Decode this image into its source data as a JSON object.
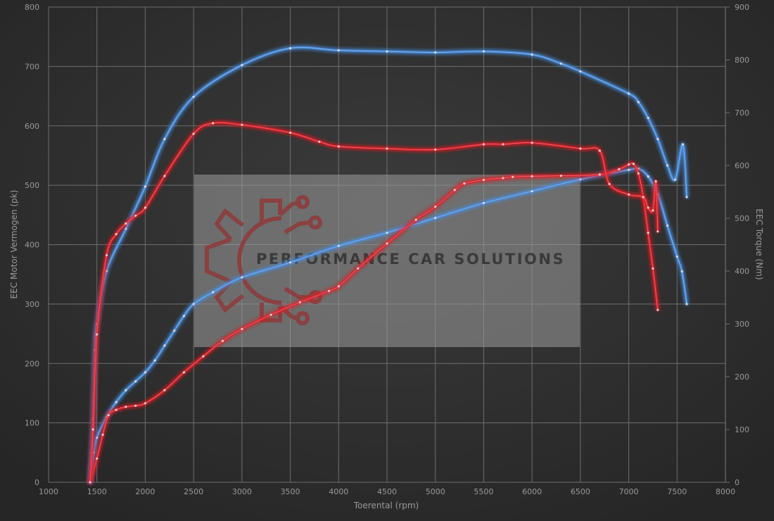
{
  "chart_data": {
    "type": "line",
    "xlabel": "Toerental (rpm)",
    "ylabel_left": "EEC Motor Vermogen (pk)",
    "ylabel_right": "EEC Torque (Nm)",
    "xlim": [
      1000,
      8000
    ],
    "ylim_left": [
      0,
      800
    ],
    "ylim_right": [
      0,
      900
    ],
    "x_ticks": [
      1000,
      1500,
      2000,
      2500,
      3000,
      3500,
      4000,
      4500,
      5000,
      5500,
      6000,
      6500,
      7000,
      7500,
      8000
    ],
    "y_left_ticks": [
      0,
      100,
      200,
      300,
      400,
      500,
      600,
      700,
      800
    ],
    "y_right_ticks": [
      0,
      100,
      200,
      300,
      400,
      500,
      600,
      700,
      800,
      900
    ],
    "grid": true,
    "colors": {
      "background": "#2e2e2e",
      "tuned": "#4a90e2",
      "stock": "#e0242a",
      "grid": "#6e6e6e"
    },
    "series": [
      {
        "axis": "left",
        "color": "#4a90e2",
        "points": [
          [
            1430,
            0
          ],
          [
            1470,
            50
          ],
          [
            1500,
            75
          ],
          [
            1600,
            110
          ],
          [
            1700,
            135
          ],
          [
            1800,
            155
          ],
          [
            1900,
            170
          ],
          [
            2000,
            185
          ],
          [
            2100,
            205
          ],
          [
            2200,
            230
          ],
          [
            2300,
            255
          ],
          [
            2400,
            280
          ],
          [
            2500,
            300
          ],
          [
            2700,
            320
          ],
          [
            3000,
            345
          ],
          [
            3500,
            370
          ],
          [
            4000,
            398
          ],
          [
            4500,
            420
          ],
          [
            5000,
            445
          ],
          [
            5500,
            470
          ],
          [
            6000,
            490
          ],
          [
            6500,
            510
          ],
          [
            7000,
            526
          ],
          [
            7100,
            528
          ],
          [
            7200,
            515
          ],
          [
            7300,
            485
          ],
          [
            7400,
            432
          ],
          [
            7500,
            380
          ],
          [
            7550,
            355
          ],
          [
            7600,
            300
          ]
        ]
      },
      {
        "axis": "right",
        "color": "#4a90e2",
        "points": [
          [
            1430,
            0
          ],
          [
            1460,
            120
          ],
          [
            1480,
            250
          ],
          [
            1500,
            300
          ],
          [
            1600,
            400
          ],
          [
            1800,
            480
          ],
          [
            2000,
            560
          ],
          [
            2200,
            650
          ],
          [
            2500,
            730
          ],
          [
            3000,
            790
          ],
          [
            3500,
            822
          ],
          [
            4000,
            818
          ],
          [
            4500,
            816
          ],
          [
            5000,
            814
          ],
          [
            5500,
            816
          ],
          [
            6000,
            810
          ],
          [
            6300,
            793
          ],
          [
            6500,
            778
          ],
          [
            7000,
            736
          ],
          [
            7100,
            720
          ],
          [
            7200,
            690
          ],
          [
            7300,
            650
          ],
          [
            7400,
            600
          ],
          [
            7480,
            573
          ],
          [
            7560,
            640
          ],
          [
            7600,
            540
          ]
        ]
      },
      {
        "axis": "left",
        "color": "#e0242a",
        "points": [
          [
            1430,
            0
          ],
          [
            1500,
            40
          ],
          [
            1560,
            80
          ],
          [
            1620,
            113
          ],
          [
            1700,
            122
          ],
          [
            1800,
            127
          ],
          [
            1900,
            129
          ],
          [
            2000,
            133
          ],
          [
            2200,
            155
          ],
          [
            2400,
            185
          ],
          [
            2600,
            212
          ],
          [
            2800,
            238
          ],
          [
            3000,
            258
          ],
          [
            3300,
            282
          ],
          [
            3600,
            303
          ],
          [
            3900,
            322
          ],
          [
            4000,
            330
          ],
          [
            4200,
            360
          ],
          [
            4500,
            402
          ],
          [
            4800,
            442
          ],
          [
            5000,
            464
          ],
          [
            5200,
            492
          ],
          [
            5300,
            503
          ],
          [
            5500,
            509
          ],
          [
            5700,
            512
          ],
          [
            5800,
            514
          ],
          [
            6000,
            515
          ],
          [
            6300,
            516
          ],
          [
            6700,
            518
          ],
          [
            6900,
            527
          ],
          [
            7000,
            535
          ],
          [
            7050,
            536
          ],
          [
            7100,
            520
          ],
          [
            7150,
            480
          ],
          [
            7200,
            420
          ],
          [
            7250,
            360
          ],
          [
            7300,
            290
          ]
        ]
      },
      {
        "axis": "right",
        "color": "#e0242a",
        "points": [
          [
            1430,
            0
          ],
          [
            1460,
            100
          ],
          [
            1500,
            280
          ],
          [
            1600,
            430
          ],
          [
            1700,
            470
          ],
          [
            1800,
            490
          ],
          [
            1900,
            505
          ],
          [
            2000,
            520
          ],
          [
            2200,
            580
          ],
          [
            2500,
            660
          ],
          [
            2700,
            680
          ],
          [
            3000,
            677
          ],
          [
            3500,
            662
          ],
          [
            3800,
            645
          ],
          [
            4000,
            636
          ],
          [
            4500,
            632
          ],
          [
            5000,
            630
          ],
          [
            5500,
            640
          ],
          [
            5700,
            640
          ],
          [
            6000,
            643
          ],
          [
            6500,
            632
          ],
          [
            6700,
            628
          ],
          [
            6800,
            565
          ],
          [
            7000,
            545
          ],
          [
            7150,
            540
          ],
          [
            7200,
            520
          ],
          [
            7250,
            515
          ],
          [
            7280,
            570
          ],
          [
            7300,
            475
          ]
        ]
      }
    ]
  },
  "watermark": {
    "text": "PERFORMANCE CAR SOLUTIONS",
    "icon": "gear-circuit-logo",
    "colors": {
      "box": "#9c9c9c",
      "icon": "#8f3a3a",
      "text": "#3a3a3a"
    }
  }
}
